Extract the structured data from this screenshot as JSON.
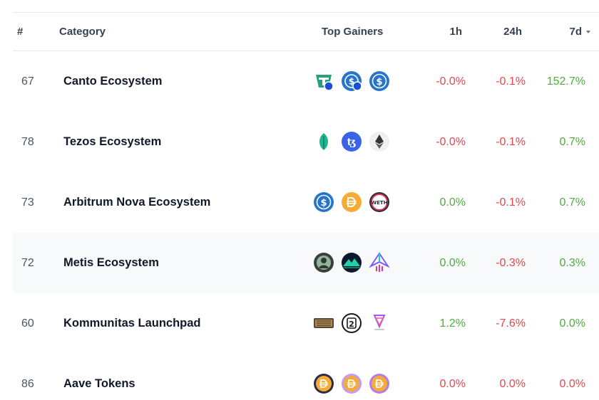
{
  "header": {
    "rank": "#",
    "category": "Category",
    "top_gainers": "Top Gainers",
    "h1": "1h",
    "h24": "24h",
    "d7": "7d"
  },
  "colors": {
    "negative": "#e5484d",
    "positive": "#4caf3a"
  },
  "rows": [
    {
      "rank": "67",
      "name": "Canto Ecosystem",
      "h1": "-0.0%",
      "h24": "-0.1%",
      "d7": "152.7%",
      "icons": [
        "tether-icon",
        "usdc-bridged-icon",
        "usdc-icon"
      ]
    },
    {
      "rank": "78",
      "name": "Tezos Ecosystem",
      "h1": "-0.0%",
      "h24": "-0.1%",
      "d7": "0.7%",
      "icons": [
        "leaf-token-icon",
        "tezos-icon",
        "ethereum-icon"
      ]
    },
    {
      "rank": "73",
      "name": "Arbitrum Nova Ecosystem",
      "h1": "0.0%",
      "h24": "-0.1%",
      "d7": "0.7%",
      "icons": [
        "usdc-icon",
        "dai-icon",
        "weth-icon"
      ]
    },
    {
      "rank": "72",
      "name": "Metis Ecosystem",
      "h1": "0.0%",
      "h24": "-0.3%",
      "d7": "0.3%",
      "icons": [
        "avatar-token-icon",
        "mountain-token-icon",
        "rocket-token-icon"
      ]
    },
    {
      "rank": "60",
      "name": "Kommunitas Launchpad",
      "h1": "1.2%",
      "h24": "-7.6%",
      "d7": "0.0%",
      "icons": [
        "game-logo-icon",
        "number-two-token-icon",
        "heart-token-icon"
      ]
    },
    {
      "rank": "86",
      "name": "Aave Tokens",
      "h1": "0.0%",
      "h24": "0.0%",
      "d7": "0.0%",
      "icons": [
        "aave-dai-icon",
        "aave-dai-icon",
        "aave-dai-icon"
      ]
    }
  ]
}
